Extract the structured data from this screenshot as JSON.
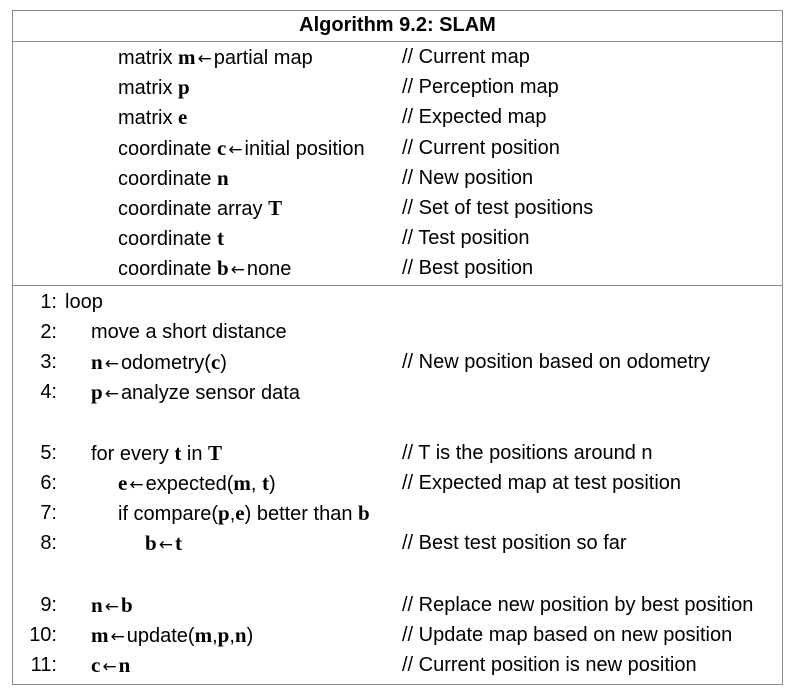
{
  "title": "Algorithm 9.2: SLAM",
  "declarations": [
    {
      "pre": "matrix ",
      "var": "m",
      "arrow": true,
      "post": "partial map",
      "comment": "// Current map"
    },
    {
      "pre": "matrix ",
      "var": "p",
      "arrow": false,
      "post": "",
      "comment": "// Perception map"
    },
    {
      "pre": "matrix ",
      "var": "e",
      "arrow": false,
      "post": "",
      "comment": "// Expected map"
    },
    {
      "pre": "coordinate ",
      "var": "c",
      "arrow": true,
      "post": "initial position",
      "comment": "// Current position"
    },
    {
      "pre": "coordinate ",
      "var": "n",
      "arrow": false,
      "post": "",
      "comment": "// New position"
    },
    {
      "pre": "coordinate array ",
      "var": "T",
      "arrow": false,
      "post": "",
      "comment": "// Set of test positions"
    },
    {
      "pre": "coordinate ",
      "var": "t",
      "arrow": false,
      "post": "",
      "comment": "// Test position"
    },
    {
      "pre": "coordinate ",
      "var": "b",
      "arrow": true,
      "post": "none",
      "comment": "// Best position"
    }
  ],
  "arrow_symbol": "←",
  "lines": [
    {
      "num": "1:",
      "indent": 0,
      "parts": [
        {
          "t": "loop"
        }
      ],
      "comment": ""
    },
    {
      "num": "2:",
      "indent": 1,
      "parts": [
        {
          "t": "move a short distance"
        }
      ],
      "comment": ""
    },
    {
      "num": "3:",
      "indent": 1,
      "parts": [
        {
          "b": "n"
        },
        {
          "arrow": true
        },
        {
          "t": "odometry("
        },
        {
          "b": "c"
        },
        {
          "t": ")"
        }
      ],
      "comment": "// New position based on odometry"
    },
    {
      "num": "4:",
      "indent": 1,
      "parts": [
        {
          "b": "p"
        },
        {
          "arrow": true
        },
        {
          "t": "analyze sensor data"
        }
      ],
      "comment": ""
    },
    {
      "num": "5:",
      "indent": 1,
      "parts": [
        {
          "t": "for every "
        },
        {
          "b": "t"
        },
        {
          "t": " in "
        },
        {
          "b": "T"
        }
      ],
      "comment": "// T is the positions around n"
    },
    {
      "num": "6:",
      "indent": 2,
      "parts": [
        {
          "b": "e"
        },
        {
          "arrow": true
        },
        {
          "t": "expected("
        },
        {
          "b": "m"
        },
        {
          "t": ", "
        },
        {
          "b": "t"
        },
        {
          "t": ")"
        }
      ],
      "comment": "// Expected map at test position"
    },
    {
      "num": "7:",
      "indent": 2,
      "parts": [
        {
          "t": "if compare("
        },
        {
          "b": "p"
        },
        {
          "t": ","
        },
        {
          "b": "e"
        },
        {
          "t": ") better than "
        },
        {
          "b": "b"
        }
      ],
      "comment": ""
    },
    {
      "num": "8:",
      "indent": 3,
      "parts": [
        {
          "b": "b"
        },
        {
          "arrow": true
        },
        {
          "b": "t"
        }
      ],
      "comment": "// Best test position so far"
    },
    {
      "num": "9:",
      "indent": 1,
      "parts": [
        {
          "b": "n"
        },
        {
          "arrow": true
        },
        {
          "b": "b"
        }
      ],
      "comment": "// Replace new position by best position"
    },
    {
      "num": "10:",
      "indent": 1,
      "parts": [
        {
          "b": "m"
        },
        {
          "arrow": true
        },
        {
          "t": "update("
        },
        {
          "b": "m"
        },
        {
          "t": ","
        },
        {
          "b": "p"
        },
        {
          "t": ","
        },
        {
          "b": "n"
        },
        {
          "t": ")"
        }
      ],
      "comment": "// Update map based on new position"
    },
    {
      "num": "11:",
      "indent": 1,
      "parts": [
        {
          "b": "c"
        },
        {
          "arrow": true
        },
        {
          "b": "n"
        }
      ],
      "comment": "// Current position is new position"
    }
  ]
}
